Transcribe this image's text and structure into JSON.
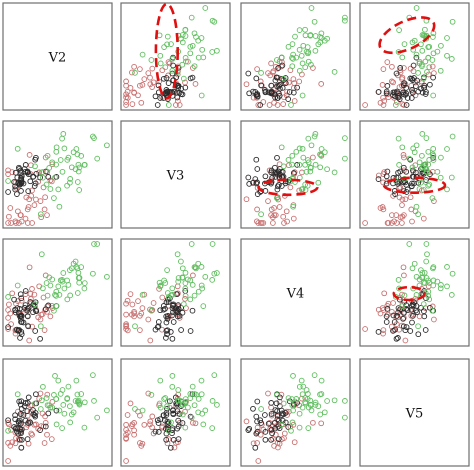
{
  "chart_data": {
    "type": "scatter-matrix",
    "variables": [
      "V2",
      "V3",
      "V4",
      "V5"
    ],
    "axis_range": [
      0,
      1
    ],
    "grid": false,
    "legend": "none",
    "marker": "open-circle",
    "series": [
      {
        "key": "red",
        "color": "#c97070"
      },
      {
        "key": "black",
        "color": "#2a2a2a"
      },
      {
        "key": "green",
        "color": "#5fbf5f"
      }
    ],
    "clusters": {
      "V2": {
        "red": [
          0.2,
          0.12
        ],
        "black": [
          0.2,
          0.1
        ],
        "green": [
          0.55,
          0.18
        ]
      },
      "V3": {
        "red": [
          0.3,
          0.2
        ],
        "black": [
          0.45,
          0.08
        ],
        "green": [
          0.55,
          0.18
        ]
      },
      "V4": {
        "red": [
          0.3,
          0.18
        ],
        "black": [
          0.3,
          0.12
        ],
        "green": [
          0.6,
          0.14
        ]
      },
      "V5": {
        "red": [
          0.35,
          0.18
        ],
        "black": [
          0.45,
          0.12
        ],
        "green": [
          0.6,
          0.14
        ]
      }
    },
    "points_per_series": 45,
    "highlight_ellipses": [
      {
        "row": 0,
        "col": 1,
        "cx": 0.42,
        "cy": 0.45,
        "rx": 0.1,
        "ry": 0.44,
        "rot": 0
      },
      {
        "row": 0,
        "col": 3,
        "cx": 0.43,
        "cy": 0.3,
        "rx": 0.27,
        "ry": 0.13,
        "rot": -25
      },
      {
        "row": 1,
        "col": 2,
        "cx": 0.43,
        "cy": 0.62,
        "rx": 0.27,
        "ry": 0.07,
        "rot": 0
      },
      {
        "row": 1,
        "col": 3,
        "cx": 0.5,
        "cy": 0.6,
        "rx": 0.28,
        "ry": 0.07,
        "rot": 0
      },
      {
        "row": 2,
        "col": 3,
        "cx": 0.45,
        "cy": 0.51,
        "rx": 0.14,
        "ry": 0.06,
        "rot": 0
      }
    ]
  }
}
